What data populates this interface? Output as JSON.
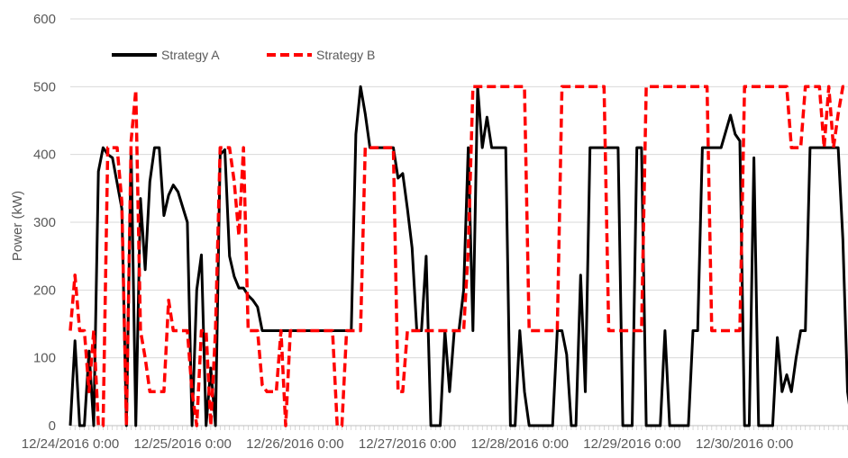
{
  "chart_data": {
    "type": "line",
    "title": "",
    "xlabel": "",
    "ylabel": "Power (kW)",
    "ylim": [
      0,
      600
    ],
    "yticks": [
      0,
      100,
      200,
      300,
      400,
      500,
      600
    ],
    "xlim": [
      "12/24/2016 0:00",
      "12/31/2016 1:30"
    ],
    "x_tick_labels": [
      "12/24/2016 0:00",
      "12/25/2016 0:00",
      "12/26/2016 0:00",
      "12/27/2016 0:00",
      "12/28/2016 0:00",
      "12/29/2016 0:00",
      "12/30/2016 0:00"
    ],
    "grid": "horizontal",
    "legend_position": "top-left",
    "series": [
      {
        "name": "Strategy A",
        "color": "#000000",
        "style": "solid",
        "points": [
          [
            "12/24/2016 0:00",
            0
          ],
          [
            "12/24/2016 1:00",
            125
          ],
          [
            "12/24/2016 2:00",
            0
          ],
          [
            "12/24/2016 3:00",
            0
          ],
          [
            "12/24/2016 4:00",
            110
          ],
          [
            "12/24/2016 5:00",
            0
          ],
          [
            "12/24/2016 6:00",
            375
          ],
          [
            "12/24/2016 7:00",
            410
          ],
          [
            "12/24/2016 8:00",
            400
          ],
          [
            "12/24/2016 9:00",
            395
          ],
          [
            "12/24/2016 11:00",
            320
          ],
          [
            "12/24/2016 12:00",
            0
          ],
          [
            "12/24/2016 13:00",
            410
          ],
          [
            "12/24/2016 14:00",
            0
          ],
          [
            "12/24/2016 15:00",
            335
          ],
          [
            "12/24/2016 16:00",
            230
          ],
          [
            "12/24/2016 17:00",
            360
          ],
          [
            "12/24/2016 18:00",
            410
          ],
          [
            "12/24/2016 19:00",
            410
          ],
          [
            "12/24/2016 20:00",
            310
          ],
          [
            "12/24/2016 21:00",
            340
          ],
          [
            "12/24/2016 22:00",
            355
          ],
          [
            "12/24/2016 23:00",
            345
          ],
          [
            "12/25/2016 1:00",
            300
          ],
          [
            "12/25/2016 2:00",
            0
          ],
          [
            "12/25/2016 3:00",
            200
          ],
          [
            "12/25/2016 4:00",
            252
          ],
          [
            "12/25/2016 5:00",
            0
          ],
          [
            "12/25/2016 6:00",
            85
          ],
          [
            "12/25/2016 7:00",
            0
          ],
          [
            "12/25/2016 8:00",
            400
          ],
          [
            "12/25/2016 9:00",
            407
          ],
          [
            "12/25/2016 10:00",
            250
          ],
          [
            "12/25/2016 11:00",
            220
          ],
          [
            "12/25/2016 12:00",
            203
          ],
          [
            "12/25/2016 13:00",
            203
          ],
          [
            "12/25/2016 14:00",
            192
          ],
          [
            "12/25/2016 15:00",
            185
          ],
          [
            "12/25/2016 16:00",
            175
          ],
          [
            "12/25/2016 17:00",
            140
          ],
          [
            "12/26/2016 12:00",
            140
          ],
          [
            "12/26/2016 13:00",
            430
          ],
          [
            "12/26/2016 14:00",
            500
          ],
          [
            "12/26/2016 15:00",
            460
          ],
          [
            "12/26/2016 16:00",
            410
          ],
          [
            "12/26/2016 21:00",
            410
          ],
          [
            "12/26/2016 22:00",
            365
          ],
          [
            "12/26/2016 23:00",
            372
          ],
          [
            "12/27/2016 0:00",
            320
          ],
          [
            "12/27/2016 1:00",
            262
          ],
          [
            "12/27/2016 2:00",
            140
          ],
          [
            "12/27/2016 3:00",
            140
          ],
          [
            "12/27/2016 4:00",
            250
          ],
          [
            "12/27/2016 5:00",
            0
          ],
          [
            "12/27/2016 7:00",
            0
          ],
          [
            "12/27/2016 8:00",
            140
          ],
          [
            "12/27/2016 9:00",
            50
          ],
          [
            "12/27/2016 10:00",
            140
          ],
          [
            "12/27/2016 11:00",
            140
          ],
          [
            "12/27/2016 12:00",
            200
          ],
          [
            "12/27/2016 13:00",
            410
          ],
          [
            "12/27/2016 14:00",
            140
          ],
          [
            "12/27/2016 15:00",
            500
          ],
          [
            "12/27/2016 16:00",
            410
          ],
          [
            "12/27/2016 17:00",
            455
          ],
          [
            "12/27/2016 18:00",
            410
          ],
          [
            "12/27/2016 21:00",
            410
          ],
          [
            "12/27/2016 22:00",
            0
          ],
          [
            "12/27/2016 23:00",
            0
          ],
          [
            "12/28/2016 0:00",
            140
          ],
          [
            "12/28/2016 1:00",
            50
          ],
          [
            "12/28/2016 2:00",
            0
          ],
          [
            "12/28/2016 7:00",
            0
          ],
          [
            "12/28/2016 8:00",
            140
          ],
          [
            "12/28/2016 9:00",
            140
          ],
          [
            "12/28/2016 10:00",
            105
          ],
          [
            "12/28/2016 11:00",
            0
          ],
          [
            "12/28/2016 12:00",
            0
          ],
          [
            "12/28/2016 13:00",
            222
          ],
          [
            "12/28/2016 14:00",
            50
          ],
          [
            "12/28/2016 15:00",
            410
          ],
          [
            "12/28/2016 21:00",
            410
          ],
          [
            "12/28/2016 22:00",
            0
          ],
          [
            "12/29/2016 0:00",
            0
          ],
          [
            "12/29/2016 1:00",
            410
          ],
          [
            "12/29/2016 2:00",
            410
          ],
          [
            "12/29/2016 3:00",
            0
          ],
          [
            "12/29/2016 6:00",
            0
          ],
          [
            "12/29/2016 7:00",
            140
          ],
          [
            "12/29/2016 8:00",
            0
          ],
          [
            "12/29/2016 12:00",
            0
          ],
          [
            "12/29/2016 13:00",
            140
          ],
          [
            "12/29/2016 14:00",
            140
          ],
          [
            "12/29/2016 15:00",
            410
          ],
          [
            "12/29/2016 19:00",
            410
          ],
          [
            "12/29/2016 21:00",
            458
          ],
          [
            "12/29/2016 22:00",
            430
          ],
          [
            "12/29/2016 23:00",
            420
          ],
          [
            "12/30/2016 0:00",
            0
          ],
          [
            "12/30/2016 1:00",
            0
          ],
          [
            "12/30/2016 2:00",
            395
          ],
          [
            "12/30/2016 3:00",
            0
          ],
          [
            "12/30/2016 6:00",
            0
          ],
          [
            "12/30/2016 7:00",
            130
          ],
          [
            "12/30/2016 8:00",
            50
          ],
          [
            "12/30/2016 9:00",
            75
          ],
          [
            "12/30/2016 10:00",
            50
          ],
          [
            "12/30/2016 11:00",
            100
          ],
          [
            "12/30/2016 12:00",
            140
          ],
          [
            "12/30/2016 13:00",
            140
          ],
          [
            "12/30/2016 14:00",
            410
          ],
          [
            "12/30/2016 20:00",
            410
          ],
          [
            "12/30/2016 21:00",
            275
          ],
          [
            "12/30/2016 22:00",
            50
          ],
          [
            "12/30/2016 23:00",
            0
          ],
          [
            "12/31/2016 1:00",
            0
          ],
          [
            "12/31/2016 1:30",
            50
          ]
        ]
      },
      {
        "name": "Strategy B",
        "color": "#ff0000",
        "style": "dashed",
        "points": [
          [
            "12/24/2016 0:00",
            140
          ],
          [
            "12/24/2016 1:00",
            222
          ],
          [
            "12/24/2016 2:00",
            140
          ],
          [
            "12/24/2016 3:00",
            140
          ],
          [
            "12/24/2016 4:00",
            50
          ],
          [
            "12/24/2016 5:00",
            140
          ],
          [
            "12/24/2016 6:00",
            0
          ],
          [
            "12/24/2016 7:00",
            0
          ],
          [
            "12/24/2016 8:00",
            410
          ],
          [
            "12/24/2016 9:00",
            410
          ],
          [
            "12/24/2016 10:00",
            410
          ],
          [
            "12/24/2016 11:00",
            330
          ],
          [
            "12/24/2016 12:00",
            0
          ],
          [
            "12/24/2016 13:00",
            420
          ],
          [
            "12/24/2016 14:00",
            495
          ],
          [
            "12/24/2016 15:00",
            140
          ],
          [
            "12/24/2016 16:00",
            100
          ],
          [
            "12/24/2016 17:00",
            50
          ],
          [
            "12/24/2016 20:00",
            50
          ],
          [
            "12/24/2016 21:00",
            185
          ],
          [
            "12/24/2016 22:00",
            140
          ],
          [
            "12/25/2016 1:00",
            140
          ],
          [
            "12/25/2016 2:00",
            50
          ],
          [
            "12/25/2016 3:00",
            0
          ],
          [
            "12/25/2016 4:00",
            140
          ],
          [
            "12/25/2016 5:00",
            140
          ],
          [
            "12/25/2016 6:00",
            0
          ],
          [
            "12/25/2016 7:00",
            140
          ],
          [
            "12/25/2016 8:00",
            410
          ],
          [
            "12/25/2016 9:00",
            410
          ],
          [
            "12/25/2016 10:00",
            410
          ],
          [
            "12/25/2016 11:00",
            360
          ],
          [
            "12/25/2016 12:00",
            280
          ],
          [
            "12/25/2016 13:00",
            410
          ],
          [
            "12/25/2016 14:00",
            140
          ],
          [
            "12/25/2016 15:00",
            140
          ],
          [
            "12/25/2016 16:00",
            140
          ],
          [
            "12/25/2016 17:00",
            60
          ],
          [
            "12/25/2016 18:00",
            50
          ],
          [
            "12/25/2016 20:00",
            50
          ],
          [
            "12/25/2016 21:00",
            140
          ],
          [
            "12/25/2016 22:00",
            0
          ],
          [
            "12/25/2016 23:00",
            140
          ],
          [
            "12/26/2016 8:00",
            140
          ],
          [
            "12/26/2016 9:00",
            0
          ],
          [
            "12/26/2016 10:00",
            0
          ],
          [
            "12/26/2016 11:00",
            140
          ],
          [
            "12/26/2016 14:00",
            140
          ],
          [
            "12/26/2016 15:00",
            410
          ],
          [
            "12/26/2016 21:00",
            410
          ],
          [
            "12/26/2016 22:00",
            50
          ],
          [
            "12/26/2016 23:00",
            50
          ],
          [
            "12/27/2016 0:00",
            140
          ],
          [
            "12/27/2016 8:00",
            140
          ],
          [
            "12/27/2016 12:00",
            140
          ],
          [
            "12/27/2016 13:00",
            260
          ],
          [
            "12/27/2016 14:00",
            500
          ],
          [
            "12/28/2016 1:00",
            500
          ],
          [
            "12/28/2016 2:00",
            140
          ],
          [
            "12/28/2016 8:00",
            140
          ],
          [
            "12/28/2016 9:00",
            500
          ],
          [
            "12/28/2016 18:00",
            500
          ],
          [
            "12/28/2016 19:00",
            140
          ],
          [
            "12/29/2016 2:00",
            140
          ],
          [
            "12/29/2016 3:00",
            500
          ],
          [
            "12/29/2016 16:00",
            500
          ],
          [
            "12/29/2016 17:00",
            140
          ],
          [
            "12/29/2016 23:00",
            140
          ],
          [
            "12/30/2016 0:00",
            500
          ],
          [
            "12/30/2016 9:00",
            500
          ],
          [
            "12/30/2016 10:00",
            410
          ],
          [
            "12/30/2016 12:00",
            410
          ],
          [
            "12/30/2016 13:00",
            500
          ],
          [
            "12/30/2016 16:00",
            500
          ],
          [
            "12/30/2016 17:00",
            410
          ],
          [
            "12/30/2016 18:00",
            500
          ],
          [
            "12/30/2016 19:00",
            410
          ],
          [
            "12/30/2016 20:00",
            460
          ],
          [
            "12/30/2016 21:00",
            500
          ],
          [
            "12/31/2016 1:00",
            500
          ],
          [
            "12/31/2016 1:30",
            380
          ]
        ]
      }
    ]
  }
}
